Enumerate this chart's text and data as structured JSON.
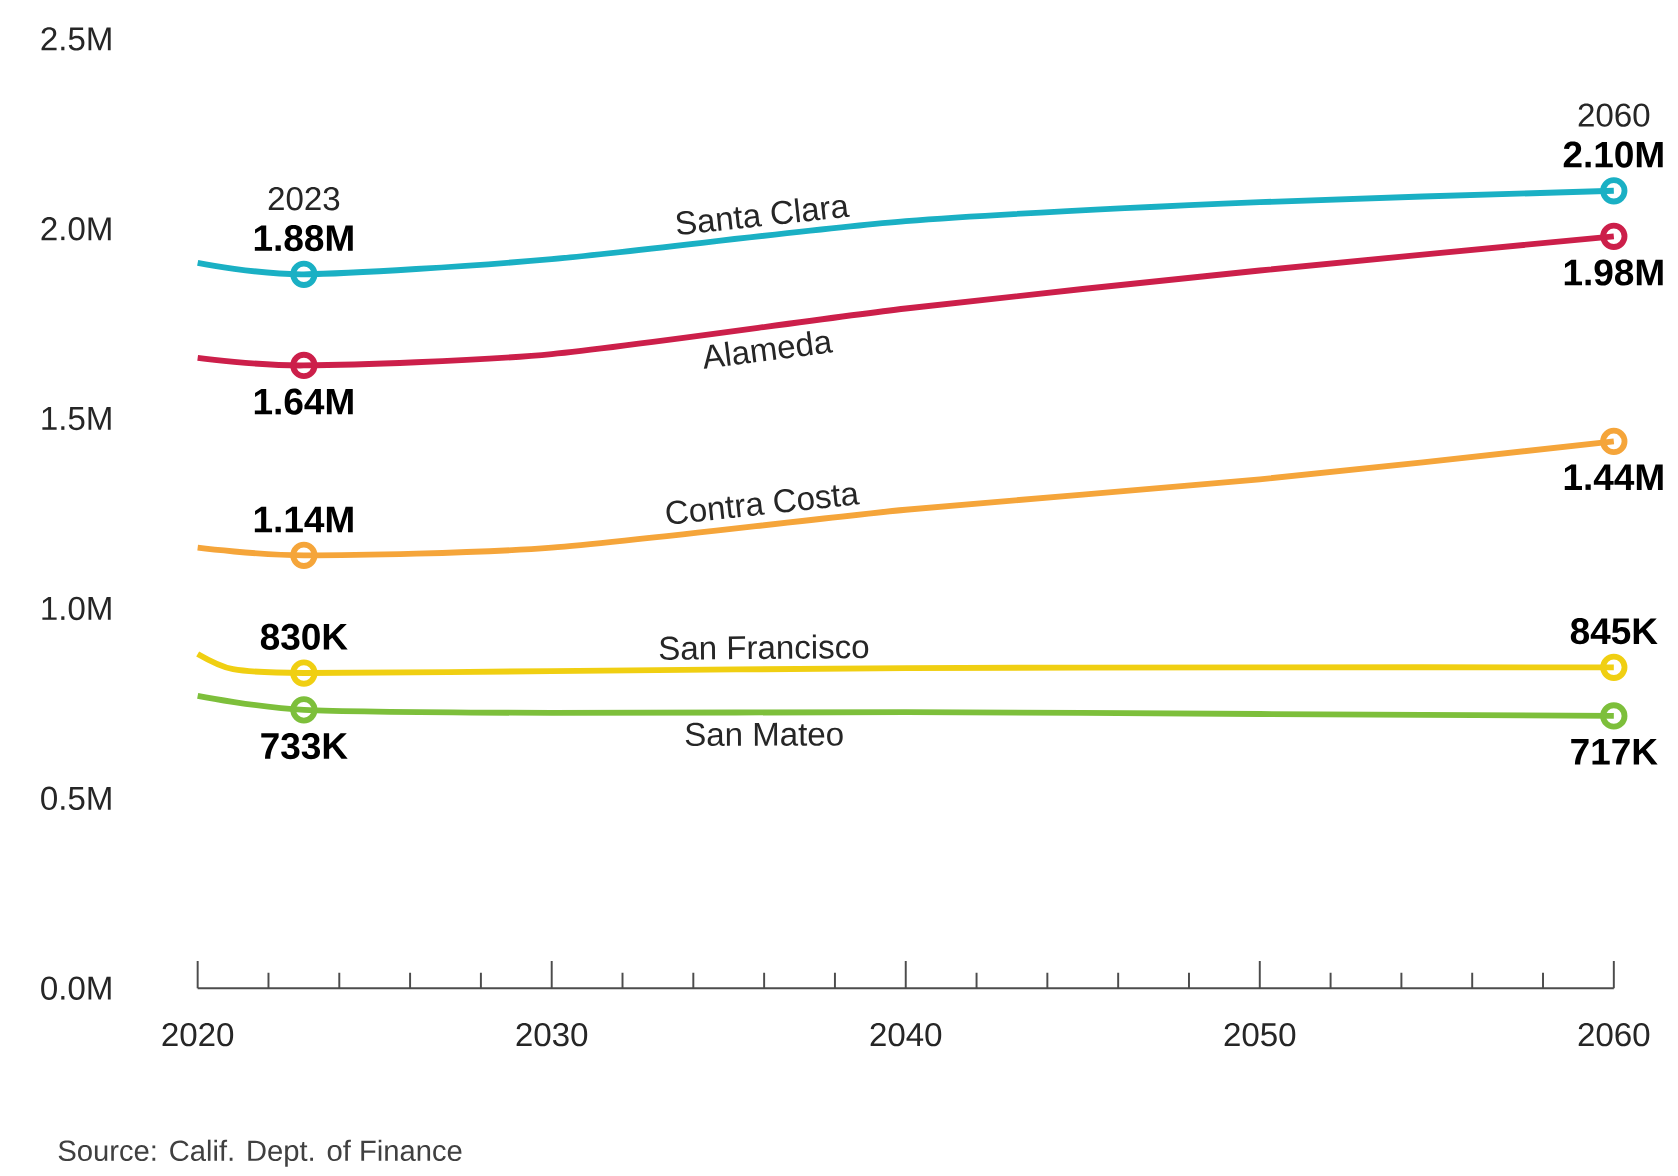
{
  "chart_data": {
    "type": "line",
    "xlim": [
      2020,
      2060
    ],
    "xticks": [
      2020,
      2030,
      2040,
      2050,
      2060
    ],
    "ylim": [
      0,
      2500000
    ],
    "yticks": [
      {
        "value": 0,
        "label": "0.0M"
      },
      {
        "value": 500000,
        "label": "0.5M"
      },
      {
        "value": 1000000,
        "label": "1.0M"
      },
      {
        "value": 1500000,
        "label": "1.5M"
      },
      {
        "value": 2000000,
        "label": "2.0M"
      },
      {
        "value": 2500000,
        "label": "2.5M"
      }
    ],
    "line_style": "solid",
    "series": [
      {
        "name": "Santa Clara",
        "color": "#1ab0c4",
        "x": [
          2020,
          2023,
          2030,
          2040,
          2050,
          2060
        ],
        "values": [
          1910000,
          1880000,
          1920000,
          2020000,
          2070000,
          2100000
        ],
        "value_labels": [
          null,
          "1.88M",
          null,
          null,
          null,
          "2.10M"
        ]
      },
      {
        "name": "Alameda",
        "color": "#cc1f4a",
        "x": [
          2020,
          2023,
          2030,
          2040,
          2050,
          2060
        ],
        "values": [
          1660000,
          1640000,
          1670000,
          1790000,
          1890000,
          1980000
        ],
        "value_labels": [
          null,
          "1.64M",
          null,
          null,
          null,
          "1.98M"
        ]
      },
      {
        "name": "Contra Costa",
        "color": "#f5a53a",
        "x": [
          2020,
          2023,
          2030,
          2040,
          2050,
          2060
        ],
        "values": [
          1160000,
          1140000,
          1160000,
          1260000,
          1340000,
          1440000
        ],
        "value_labels": [
          null,
          "1.14M",
          null,
          null,
          null,
          "1.44M"
        ]
      },
      {
        "name": "San Francisco",
        "color": "#f0cf12",
        "x": [
          2020,
          2021,
          2023,
          2030,
          2040,
          2050,
          2060
        ],
        "values": [
          880000,
          840000,
          830000,
          835000,
          843000,
          845000,
          845000
        ],
        "value_labels": [
          null,
          null,
          "830K",
          null,
          null,
          null,
          "845K"
        ]
      },
      {
        "name": "San Mateo",
        "color": "#7dbf3b",
        "x": [
          2020,
          2023,
          2030,
          2040,
          2050,
          2060
        ],
        "values": [
          770000,
          733000,
          725000,
          727000,
          722000,
          717000
        ],
        "value_labels": [
          null,
          "733K",
          null,
          null,
          null,
          "717K"
        ]
      }
    ],
    "annotations": [
      {
        "text": "2023",
        "x": 2023,
        "y": 1880000
      },
      {
        "text": "2060",
        "x": 2060,
        "y": 2100000
      },
      "Source: Calif. Dept. of Finance"
    ]
  }
}
